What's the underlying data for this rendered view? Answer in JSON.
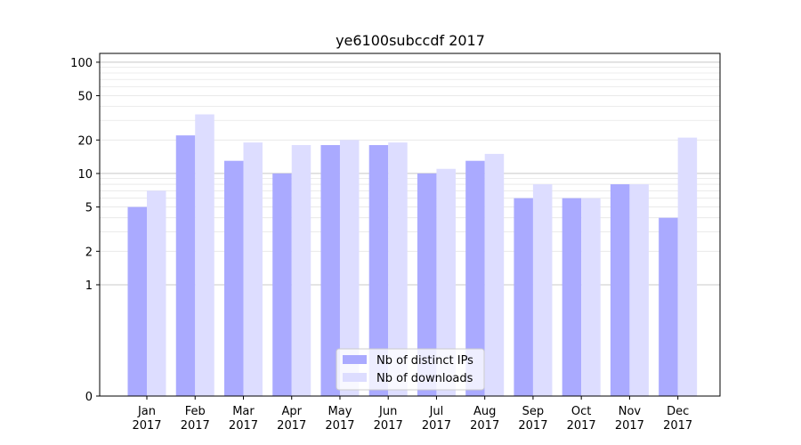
{
  "chart_data": {
    "type": "bar",
    "title": "ye6100subccdf 2017",
    "xlabel": "",
    "ylabel": "",
    "yscale": "symlog",
    "ylim": [
      0,
      120
    ],
    "yticks": [
      0,
      1,
      2,
      5,
      10,
      20,
      50,
      100
    ],
    "categories": [
      [
        "Jan",
        "2017"
      ],
      [
        "Feb",
        "2017"
      ],
      [
        "Mar",
        "2017"
      ],
      [
        "Apr",
        "2017"
      ],
      [
        "May",
        "2017"
      ],
      [
        "Jun",
        "2017"
      ],
      [
        "Jul",
        "2017"
      ],
      [
        "Aug",
        "2017"
      ],
      [
        "Sep",
        "2017"
      ],
      [
        "Oct",
        "2017"
      ],
      [
        "Nov",
        "2017"
      ],
      [
        "Dec",
        "2017"
      ]
    ],
    "series": [
      {
        "name": "Nb of distinct IPs",
        "color": "#aaaaff",
        "values": [
          5,
          22,
          13,
          10,
          18,
          18,
          10,
          13,
          6,
          6,
          8,
          4
        ]
      },
      {
        "name": "Nb of downloads",
        "color": "#ddddff",
        "values": [
          7,
          34,
          19,
          18,
          20,
          19,
          11,
          15,
          8,
          6,
          8,
          21
        ]
      }
    ],
    "legend": "bottom-center",
    "grid": true
  }
}
